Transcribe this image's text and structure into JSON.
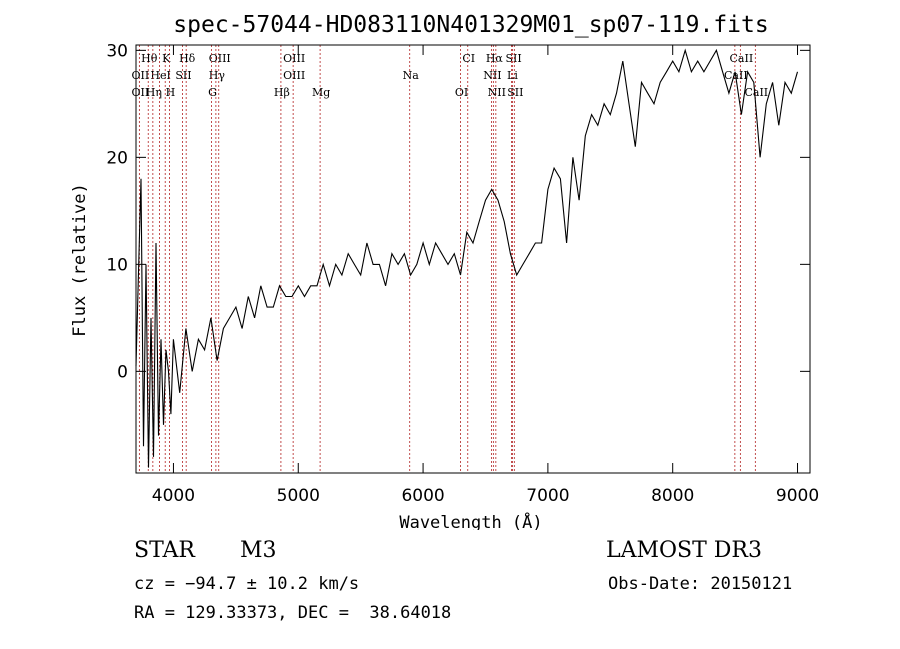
{
  "chart_data": {
    "type": "line",
    "title": "spec-57044-HD083110N401329M01_sp07-119.fits",
    "xlabel": "Wavelength (Å)",
    "ylabel": "Flux (relative)",
    "xlim": [
      3700,
      9100
    ],
    "ylim": [
      -9.5,
      30.5
    ],
    "xticks": [
      4000,
      5000,
      6000,
      7000,
      8000,
      9000
    ],
    "yticks": [
      0,
      10,
      20,
      30
    ],
    "grid": false,
    "series": [
      {
        "name": "spectrum",
        "x": [
          3700,
          3740,
          3760,
          3780,
          3800,
          3820,
          3840,
          3860,
          3880,
          3900,
          3920,
          3940,
          3960,
          3980,
          4000,
          4050,
          4100,
          4150,
          4200,
          4250,
          4300,
          4350,
          4400,
          4450,
          4500,
          4550,
          4600,
          4650,
          4700,
          4750,
          4800,
          4850,
          4900,
          4950,
          5000,
          5050,
          5100,
          5150,
          5200,
          5250,
          5300,
          5350,
          5400,
          5450,
          5500,
          5550,
          5600,
          5650,
          5700,
          5750,
          5800,
          5850,
          5900,
          5950,
          6000,
          6050,
          6100,
          6150,
          6200,
          6250,
          6300,
          6350,
          6400,
          6450,
          6500,
          6550,
          6600,
          6650,
          6700,
          6750,
          6800,
          6850,
          6900,
          6950,
          7000,
          7050,
          7100,
          7150,
          7200,
          7250,
          7300,
          7350,
          7400,
          7450,
          7500,
          7550,
          7600,
          7650,
          7700,
          7750,
          7800,
          7850,
          7900,
          7950,
          8000,
          8050,
          8100,
          8150,
          8200,
          8250,
          8300,
          8350,
          8400,
          8450,
          8500,
          8550,
          8600,
          8650,
          8700,
          8750,
          8800,
          8850,
          8900,
          8950,
          9000
        ],
        "values": [
          0.5,
          18,
          -7,
          10,
          -9,
          5,
          -8,
          12,
          -6,
          3,
          -5,
          2,
          0,
          -4,
          3,
          -2,
          4,
          0,
          3,
          2,
          5,
          1,
          4,
          5,
          6,
          4,
          7,
          5,
          8,
          6,
          6,
          8,
          7,
          7,
          8,
          7,
          8,
          8,
          10,
          8,
          10,
          9,
          11,
          10,
          9,
          12,
          10,
          10,
          8,
          11,
          10,
          11,
          9,
          10,
          12,
          10,
          12,
          11,
          10,
          11,
          9,
          13,
          12,
          14,
          16,
          17,
          16,
          14,
          11,
          9,
          10,
          11,
          12,
          12,
          17,
          19,
          18,
          12,
          20,
          16,
          22,
          24,
          23,
          25,
          24,
          26,
          29,
          25,
          21,
          27,
          26,
          25,
          27,
          28,
          29,
          28,
          30,
          28,
          29,
          28,
          29,
          30,
          28,
          26,
          28,
          24,
          28,
          27,
          20,
          25,
          27,
          23,
          27,
          26,
          28
        ]
      }
    ],
    "line_markers": [
      {
        "label": "Hθ",
        "x": 3798,
        "row": 1
      },
      {
        "label": "K",
        "x": 3934,
        "row": 1
      },
      {
        "label": "Hδ",
        "x": 4102,
        "row": 1
      },
      {
        "label": "OIII",
        "x": 4363,
        "row": 1
      },
      {
        "label": "OIII",
        "x": 4959,
        "row": 1
      },
      {
        "label": "CI",
        "x": 6358,
        "row": 1
      },
      {
        "label": "Hα",
        "x": 6563,
        "row": 1
      },
      {
        "label": "SII",
        "x": 6717,
        "row": 1
      },
      {
        "label": "CaII",
        "x": 8542,
        "row": 1
      },
      {
        "label": "OII",
        "x": 3727,
        "row": 2
      },
      {
        "label": "HeI",
        "x": 3889,
        "row": 2
      },
      {
        "label": "SII",
        "x": 4072,
        "row": 2
      },
      {
        "label": "Hγ",
        "x": 4340,
        "row": 2
      },
      {
        "label": "OIII",
        "x": 4959,
        "row": 2
      },
      {
        "label": "Na",
        "x": 5893,
        "row": 2
      },
      {
        "label": "NII",
        "x": 6548,
        "row": 2
      },
      {
        "label": "Li",
        "x": 6708,
        "row": 2
      },
      {
        "label": "CaII",
        "x": 8498,
        "row": 2
      },
      {
        "label": "OII",
        "x": 3727,
        "row": 3
      },
      {
        "label": "Hη",
        "x": 3835,
        "row": 3
      },
      {
        "label": "H",
        "x": 3968,
        "row": 3
      },
      {
        "label": "G",
        "x": 4305,
        "row": 3
      },
      {
        "label": "Hβ",
        "x": 4861,
        "row": 3
      },
      {
        "label": "Mg",
        "x": 5175,
        "row": 3
      },
      {
        "label": "OI",
        "x": 6300,
        "row": 3
      },
      {
        "label": "NII",
        "x": 6583,
        "row": 3
      },
      {
        "label": "SII",
        "x": 6731,
        "row": 3
      },
      {
        "label": "CaII",
        "x": 8662,
        "row": 3
      }
    ]
  },
  "info": {
    "class_label": "STAR",
    "subclass": "M3",
    "survey": "LAMOST DR3",
    "cz": "cz = −94.7 ± 10.2 km/s",
    "obs_date": "Obs-Date: 20150121",
    "coords": "RA = 129.33373, DEC =  38.64018"
  }
}
